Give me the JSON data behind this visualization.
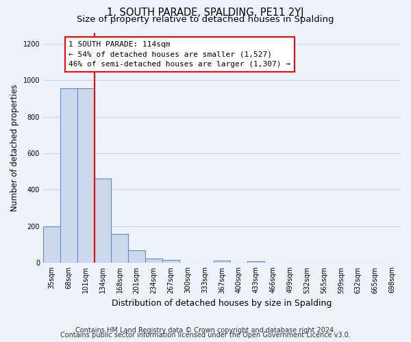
{
  "title": "1, SOUTH PARADE, SPALDING, PE11 2YJ",
  "subtitle": "Size of property relative to detached houses in Spalding",
  "xlabel": "Distribution of detached houses by size in Spalding",
  "ylabel": "Number of detached properties",
  "bar_labels": [
    "35sqm",
    "68sqm",
    "101sqm",
    "134sqm",
    "168sqm",
    "201sqm",
    "234sqm",
    "267sqm",
    "300sqm",
    "333sqm",
    "367sqm",
    "400sqm",
    "433sqm",
    "466sqm",
    "499sqm",
    "532sqm",
    "565sqm",
    "599sqm",
    "632sqm",
    "665sqm",
    "698sqm"
  ],
  "bar_values": [
    200,
    955,
    955,
    460,
    160,
    70,
    25,
    18,
    0,
    0,
    12,
    0,
    10,
    0,
    0,
    0,
    0,
    0,
    0,
    0,
    0
  ],
  "bar_color": "#ccd9ec",
  "bar_edge_color": "#5b8cc8",
  "vline_color": "red",
  "vline_index": 2.5,
  "annotation_text": "1 SOUTH PARADE: 114sqm\n← 54% of detached houses are smaller (1,527)\n46% of semi-detached houses are larger (1,307) →",
  "annotation_box_color": "white",
  "annotation_box_edge_color": "red",
  "ylim": [
    0,
    1260
  ],
  "yticks": [
    0,
    200,
    400,
    600,
    800,
    1000,
    1200
  ],
  "footer_line1": "Contains HM Land Registry data © Crown copyright and database right 2024.",
  "footer_line2": "Contains public sector information licensed under the Open Government Licence v3.0.",
  "background_color": "#eef2fa",
  "grid_color": "#c8d4e8",
  "title_fontsize": 10.5,
  "subtitle_fontsize": 9.5,
  "xlabel_fontsize": 9,
  "ylabel_fontsize": 8.5,
  "annotation_fontsize": 8,
  "tick_fontsize": 7,
  "footer_fontsize": 7
}
